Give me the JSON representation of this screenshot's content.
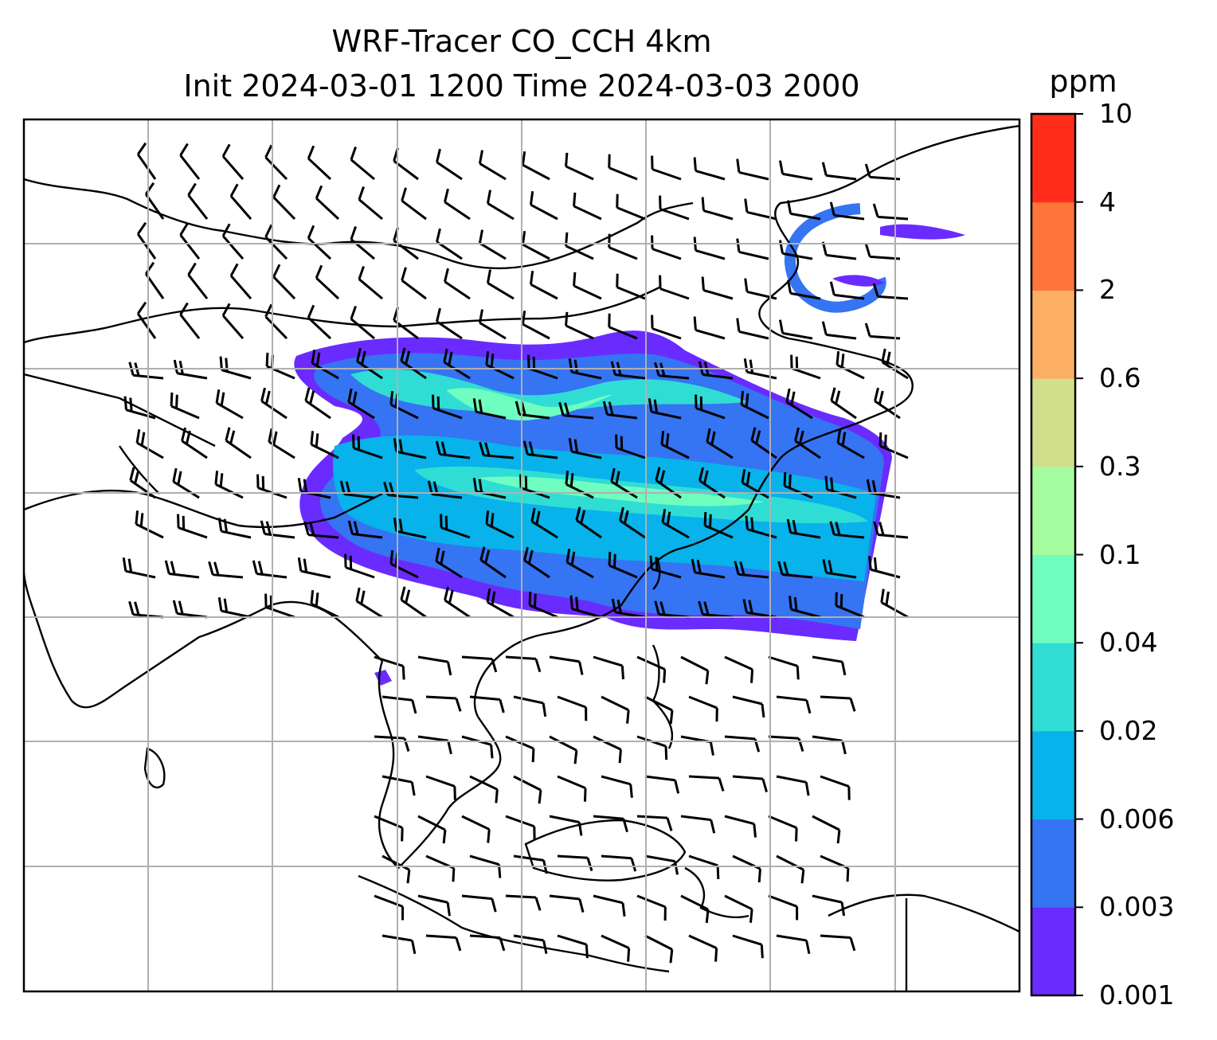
{
  "title": {
    "line1": "WRF-Tracer CO_CCH 4km",
    "line2": "Init 2024-03-01 1200 Time 2024-03-03 2000"
  },
  "colorbar": {
    "unit": "ppm",
    "levels": [
      "0.001",
      "0.003",
      "0.006",
      "0.02",
      "0.04",
      "0.1",
      "0.3",
      "0.6",
      "2",
      "4",
      "10"
    ],
    "colors": [
      "#6a2bff",
      "#3574f2",
      "#08b2ea",
      "#30ddd5",
      "#6ffdc0",
      "#a5fc9e",
      "#d2e08b",
      "#fcae62",
      "#ff7439",
      "#ff2d1a"
    ]
  },
  "map": {
    "gridlines": true,
    "coastline_color": "#000000",
    "grid_color": "#b0b0b0",
    "field": "CO_CCH tracer concentration",
    "overlay": "wind barbs"
  }
}
